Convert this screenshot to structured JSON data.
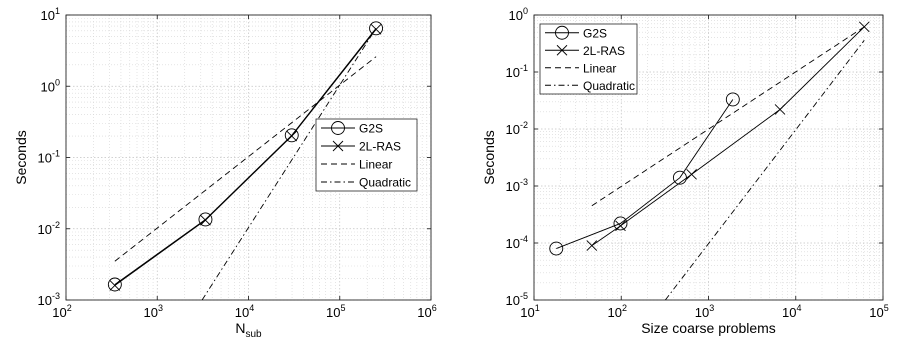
{
  "chart_data": [
    {
      "type": "line",
      "xscale": "log",
      "yscale": "log",
      "xlim": [
        100,
        1000000
      ],
      "ylim": [
        0.001,
        10
      ],
      "ylabel": "Seconds",
      "xlabel": {
        "base": "N",
        "sub": "sub"
      },
      "grid": true,
      "legend_position": "center-right",
      "xticks": [
        {
          "base": "10",
          "exp": "2",
          "value": 100
        },
        {
          "base": "10",
          "exp": "3",
          "value": 1000
        },
        {
          "base": "10",
          "exp": "4",
          "value": 10000
        },
        {
          "base": "10",
          "exp": "5",
          "value": 100000
        },
        {
          "base": "10",
          "exp": "6",
          "value": 1000000
        }
      ],
      "yticks": [
        {
          "base": "10",
          "exp": "-3",
          "value": 0.001
        },
        {
          "base": "10",
          "exp": "-2",
          "value": 0.01
        },
        {
          "base": "10",
          "exp": "-1",
          "value": 0.1
        },
        {
          "base": "10",
          "exp": "0",
          "value": 1
        },
        {
          "base": "10",
          "exp": "1",
          "value": 10
        }
      ],
      "series": [
        {
          "name": "G2S",
          "marker": "circle",
          "style": "solid",
          "x": [
            343,
            3375,
            29791,
            250047
          ],
          "y": [
            0.00165,
            0.0135,
            0.205,
            6.5
          ]
        },
        {
          "name": "2L-RAS",
          "marker": "x",
          "style": "solid",
          "x": [
            343,
            3375,
            29791,
            250047
          ],
          "y": [
            0.0016,
            0.0132,
            0.2,
            6.3
          ]
        },
        {
          "name": "Linear",
          "marker": "none",
          "style": "dashed",
          "x": [
            343,
            250047
          ],
          "y": [
            0.0035,
            2.6
          ]
        },
        {
          "name": "Quadratic",
          "marker": "none",
          "style": "dashdot",
          "x": [
            3100,
            250047
          ],
          "y": [
            0.001,
            6.5
          ]
        }
      ]
    },
    {
      "type": "line",
      "xscale": "log",
      "yscale": "log",
      "xlim": [
        10,
        100000
      ],
      "ylim": [
        1e-05,
        1
      ],
      "ylabel": "Seconds",
      "xlabel": "Size coarse problems",
      "grid": true,
      "legend_position": "top-left",
      "xticks": [
        {
          "base": "10",
          "exp": "1",
          "value": 10
        },
        {
          "base": "10",
          "exp": "2",
          "value": 100
        },
        {
          "base": "10",
          "exp": "3",
          "value": 1000
        },
        {
          "base": "10",
          "exp": "4",
          "value": 10000
        },
        {
          "base": "10",
          "exp": "5",
          "value": 100000
        }
      ],
      "yticks": [
        {
          "base": "10",
          "exp": "-5",
          "value": 1e-05
        },
        {
          "base": "10",
          "exp": "-4",
          "value": 0.0001
        },
        {
          "base": "10",
          "exp": "-3",
          "value": 0.001
        },
        {
          "base": "10",
          "exp": "-2",
          "value": 0.01
        },
        {
          "base": "10",
          "exp": "-1",
          "value": 0.1
        },
        {
          "base": "10",
          "exp": "0",
          "value": 1
        }
      ],
      "series": [
        {
          "name": "G2S",
          "marker": "circle",
          "style": "solid",
          "x": [
            18,
            98,
            470,
            1900
          ],
          "y": [
            8e-05,
            0.00022,
            0.0014,
            0.033
          ]
        },
        {
          "name": "2L-RAS",
          "marker": "x",
          "style": "solid",
          "x": [
            46,
            98,
            640,
            6600,
            61000
          ],
          "y": [
            9e-05,
            0.0002,
            0.0016,
            0.022,
            0.62
          ]
        },
        {
          "name": "Linear",
          "marker": "none",
          "style": "dashed",
          "x": [
            46,
            61000
          ],
          "y": [
            0.00045,
            0.62
          ]
        },
        {
          "name": "Quadratic",
          "marker": "none",
          "style": "dashdot",
          "x": [
            320,
            61000
          ],
          "y": [
            1e-05,
            0.36
          ]
        }
      ]
    }
  ]
}
